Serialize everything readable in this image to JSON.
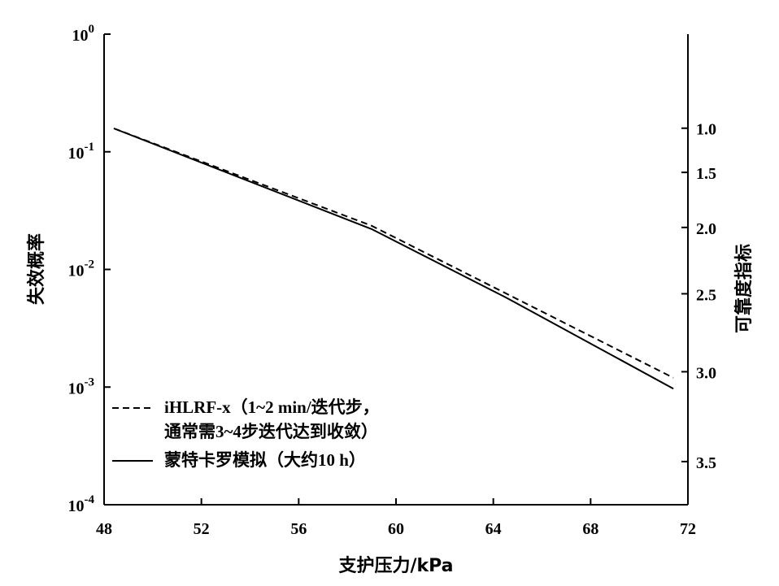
{
  "chart_data": {
    "type": "line",
    "xlabel": "支护压力/kPa",
    "ylabel_left": "失效概率",
    "ylabel_right": "可靠度指标",
    "x_ticks": [
      "48",
      "52",
      "56",
      "60",
      "64",
      "68",
      "72"
    ],
    "xlim": [
      48,
      72
    ],
    "left_y_scale": "log",
    "ylim_log10": [
      -4,
      0
    ],
    "left_y_ticks": [
      {
        "base": "10",
        "exp": "0"
      },
      {
        "base": "10",
        "exp": "-1"
      },
      {
        "base": "10",
        "exp": "-2"
      },
      {
        "base": "10",
        "exp": "-3"
      },
      {
        "base": "10",
        "exp": "-4"
      }
    ],
    "right_y_ticks": [
      "1.0",
      "1.5",
      "2.0",
      "2.5",
      "3.0",
      "3.5"
    ],
    "grid": false,
    "legend_position": "bottom-left",
    "series": [
      {
        "name": "iHLRF-x（1~2 min/迭代步，通常需3~4步迭代达到收敛）",
        "legend_lines": [
          "iHLRF-x（1~2 min/迭代步，",
          "通常需3~4步迭代达到收敛）"
        ],
        "style": "dashed",
        "color": "#000000",
        "x": [
          48.4,
          59.0,
          71.4
        ],
        "y": [
          0.158,
          0.0235,
          0.0012
        ]
      },
      {
        "name": "蒙特卡罗模拟（大约10 h）",
        "legend_lines": [
          "蒙特卡罗模拟（大约10 h）"
        ],
        "style": "solid",
        "color": "#000000",
        "x": [
          48.4,
          59.0,
          64.5,
          71.4
        ],
        "y": [
          0.158,
          0.022,
          0.0058,
          0.00097
        ]
      }
    ]
  }
}
